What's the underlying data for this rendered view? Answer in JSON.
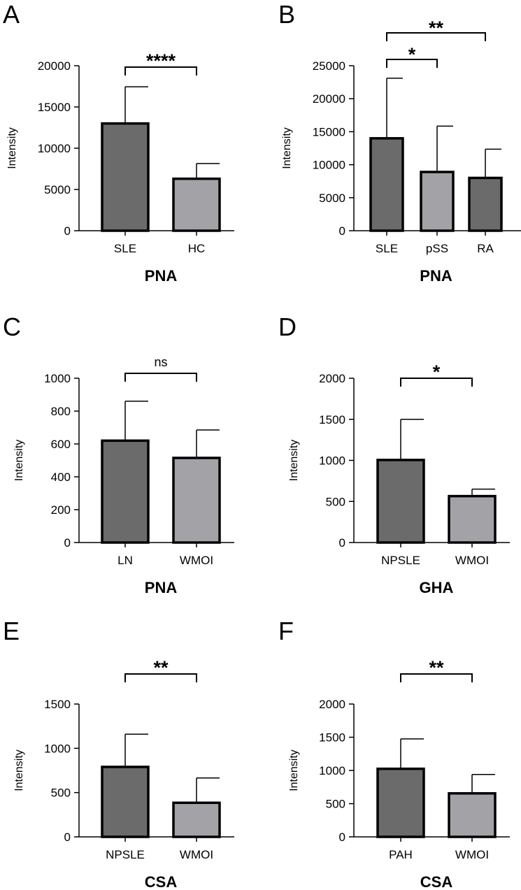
{
  "colors": {
    "dark_bar": "#6b6b6b",
    "light_bar": "#a3a3a7",
    "stroke": "#000000"
  },
  "chart_data": [
    {
      "panel": "A",
      "type": "bar",
      "xlabel": "PNA",
      "ylabel": "Intensity",
      "ylim": [
        0,
        20000
      ],
      "yticks": [
        0,
        5000,
        10000,
        15000,
        20000
      ],
      "categories": [
        "SLE",
        "HC"
      ],
      "values": [
        13000,
        6300
      ],
      "errors": [
        4450,
        1850
      ],
      "bar_colors": [
        "dark_bar",
        "light_bar"
      ],
      "comparisons": [
        {
          "from": 0,
          "to": 1,
          "label": "****"
        }
      ]
    },
    {
      "panel": "B",
      "type": "bar",
      "xlabel": "PNA",
      "ylabel": "Intensity",
      "ylim": [
        0,
        25000
      ],
      "yticks": [
        0,
        5000,
        10000,
        15000,
        20000,
        25000
      ],
      "categories": [
        "SLE",
        "pSS",
        "RA"
      ],
      "values": [
        14000,
        8900,
        8000
      ],
      "errors": [
        9100,
        6950,
        4350
      ],
      "bar_colors": [
        "dark_bar",
        "light_bar",
        "dark_bar"
      ],
      "comparisons": [
        {
          "from": 0,
          "to": 1,
          "label": "*"
        },
        {
          "from": 0,
          "to": 2,
          "label": "**"
        }
      ]
    },
    {
      "panel": "C",
      "type": "bar",
      "xlabel": "PNA",
      "ylabel": "Intensity",
      "ylim": [
        0,
        1000
      ],
      "yticks": [
        0,
        200,
        400,
        600,
        800,
        1000
      ],
      "categories": [
        "LN",
        "WMOI"
      ],
      "values": [
        620,
        515
      ],
      "errors": [
        240,
        170
      ],
      "bar_colors": [
        "dark_bar",
        "light_bar"
      ],
      "comparisons": [
        {
          "from": 0,
          "to": 1,
          "label": "ns"
        }
      ]
    },
    {
      "panel": "D",
      "type": "bar",
      "xlabel": "GHA",
      "ylabel": "Intensity",
      "ylim": [
        0,
        2000
      ],
      "yticks": [
        0,
        500,
        1000,
        1500,
        2000
      ],
      "categories": [
        "NPSLE",
        "WMOI"
      ],
      "values": [
        1005,
        565
      ],
      "errors": [
        495,
        85
      ],
      "bar_colors": [
        "dark_bar",
        "light_bar"
      ],
      "comparisons": [
        {
          "from": 0,
          "to": 1,
          "label": "*"
        }
      ]
    },
    {
      "panel": "E",
      "type": "bar",
      "xlabel": "CSA",
      "ylabel": "Intensity",
      "ylim": [
        0,
        1500
      ],
      "yticks": [
        0,
        500,
        1000,
        1500
      ],
      "categories": [
        "NPSLE",
        "WMOI"
      ],
      "values": [
        790,
        385
      ],
      "errors": [
        370,
        280
      ],
      "bar_colors": [
        "dark_bar",
        "light_bar"
      ],
      "comparisons": [
        {
          "from": 0,
          "to": 1,
          "label": "**"
        }
      ]
    },
    {
      "panel": "F",
      "type": "bar",
      "xlabel": "CSA",
      "ylabel": "Intensity",
      "ylim": [
        0,
        2000
      ],
      "yticks": [
        0,
        500,
        1000,
        1500,
        2000
      ],
      "categories": [
        "PAH",
        "WMOI"
      ],
      "values": [
        1025,
        655
      ],
      "errors": [
        450,
        285
      ],
      "bar_colors": [
        "dark_bar",
        "light_bar"
      ],
      "comparisons": [
        {
          "from": 0,
          "to": 1,
          "label": "**"
        }
      ]
    }
  ]
}
